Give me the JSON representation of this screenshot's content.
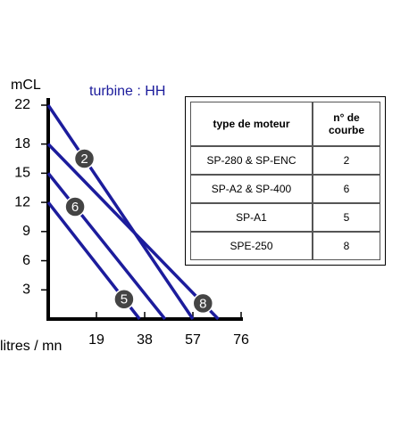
{
  "chart_data": {
    "type": "line",
    "title": "turbine : HH",
    "y_label": "mCL",
    "x_label": "litres / mn",
    "xlim": [
      0,
      76
    ],
    "xticks": [
      19,
      38,
      57,
      76
    ],
    "ylim": [
      0,
      22
    ],
    "yticks": [
      3,
      6,
      9,
      12,
      15,
      18,
      22
    ],
    "series": [
      {
        "name": "2",
        "color": "#1c1c9c",
        "x": [
          0,
          57
        ],
        "values": [
          22,
          0
        ]
      },
      {
        "name": "8",
        "color": "#1c1c9c",
        "x": [
          0,
          67
        ],
        "values": [
          18,
          0
        ]
      },
      {
        "name": "6",
        "color": "#1c1c9c",
        "x": [
          0,
          46
        ],
        "values": [
          15,
          0
        ]
      },
      {
        "name": "5",
        "color": "#1c1c9c",
        "x": [
          0,
          36
        ],
        "values": [
          12,
          0
        ]
      }
    ]
  },
  "table": {
    "header": [
      "type de moteur",
      "n° de courbe"
    ],
    "rows": [
      [
        "SP-280 & SP-ENC",
        "2"
      ],
      [
        "SP-A2 & SP-400",
        "6"
      ],
      [
        "SP-A1",
        "5"
      ],
      [
        "SPE-250",
        "8"
      ]
    ]
  }
}
